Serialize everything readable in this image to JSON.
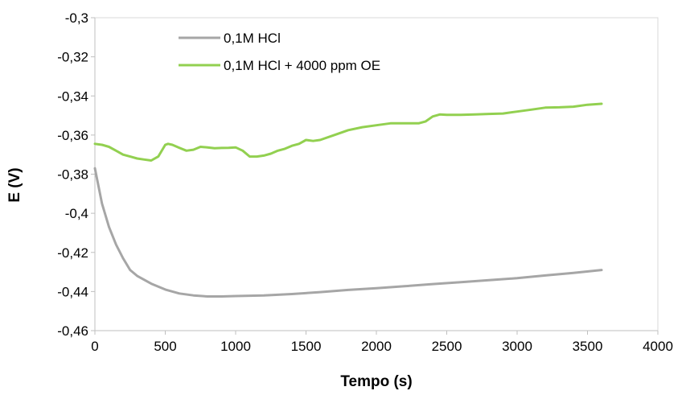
{
  "chart_data": {
    "type": "line",
    "title": "",
    "xlabel": "Tempo (s)",
    "ylabel": "E (V)",
    "xlim": [
      0,
      4000
    ],
    "ylim": [
      -0.46,
      -0.3
    ],
    "x_ticks": [
      0,
      500,
      1000,
      1500,
      2000,
      2500,
      3000,
      3500,
      4000
    ],
    "x_tick_labels": [
      "0",
      "500",
      "1000",
      "1500",
      "2000",
      "2500",
      "3000",
      "3500",
      "4000"
    ],
    "y_ticks": [
      -0.3,
      -0.32,
      -0.34,
      -0.36,
      -0.38,
      -0.4,
      -0.42,
      -0.44,
      -0.46
    ],
    "y_tick_labels": [
      "-0,3",
      "-0,32",
      "-0,34",
      "-0,36",
      "-0,38",
      "-0,4",
      "-0,42",
      "-0,44",
      "-0,46"
    ],
    "grid": false,
    "legend_position": "top-left",
    "series": [
      {
        "name": "0,1M HCl",
        "color": "#a6a6a6",
        "x": [
          0,
          50,
          100,
          150,
          200,
          250,
          300,
          400,
          500,
          600,
          700,
          800,
          900,
          1000,
          1200,
          1400,
          1600,
          1800,
          2000,
          2200,
          2400,
          2600,
          2800,
          3000,
          3200,
          3400,
          3600
        ],
        "y": [
          -0.377,
          -0.395,
          -0.407,
          -0.416,
          -0.423,
          -0.429,
          -0.432,
          -0.436,
          -0.439,
          -0.441,
          -0.442,
          -0.4425,
          -0.4425,
          -0.4423,
          -0.442,
          -0.4413,
          -0.4403,
          -0.4392,
          -0.4383,
          -0.4373,
          -0.4362,
          -0.4352,
          -0.4342,
          -0.4332,
          -0.4318,
          -0.4305,
          -0.429
        ]
      },
      {
        "name": "0,1M HCl + 4000 ppm OE",
        "color": "#92d050",
        "x": [
          0,
          50,
          100,
          150,
          200,
          250,
          300,
          350,
          400,
          450,
          500,
          520,
          550,
          600,
          650,
          700,
          750,
          800,
          850,
          900,
          950,
          1000,
          1050,
          1100,
          1150,
          1200,
          1250,
          1300,
          1350,
          1400,
          1450,
          1500,
          1550,
          1600,
          1700,
          1800,
          1900,
          2000,
          2100,
          2200,
          2300,
          2350,
          2400,
          2450,
          2500,
          2600,
          2700,
          2800,
          2900,
          3000,
          3100,
          3200,
          3300,
          3400,
          3500,
          3600
        ],
        "y": [
          -0.3645,
          -0.365,
          -0.366,
          -0.368,
          -0.37,
          -0.371,
          -0.372,
          -0.3725,
          -0.373,
          -0.371,
          -0.365,
          -0.3645,
          -0.365,
          -0.3665,
          -0.368,
          -0.3675,
          -0.366,
          -0.3663,
          -0.3667,
          -0.3666,
          -0.3665,
          -0.3663,
          -0.368,
          -0.371,
          -0.371,
          -0.3705,
          -0.3695,
          -0.368,
          -0.367,
          -0.3655,
          -0.3645,
          -0.3625,
          -0.363,
          -0.3625,
          -0.36,
          -0.3575,
          -0.356,
          -0.355,
          -0.354,
          -0.354,
          -0.354,
          -0.353,
          -0.3505,
          -0.3495,
          -0.3497,
          -0.3497,
          -0.3495,
          -0.3492,
          -0.349,
          -0.348,
          -0.347,
          -0.346,
          -0.3458,
          -0.3455,
          -0.3445,
          -0.344
        ]
      }
    ]
  }
}
